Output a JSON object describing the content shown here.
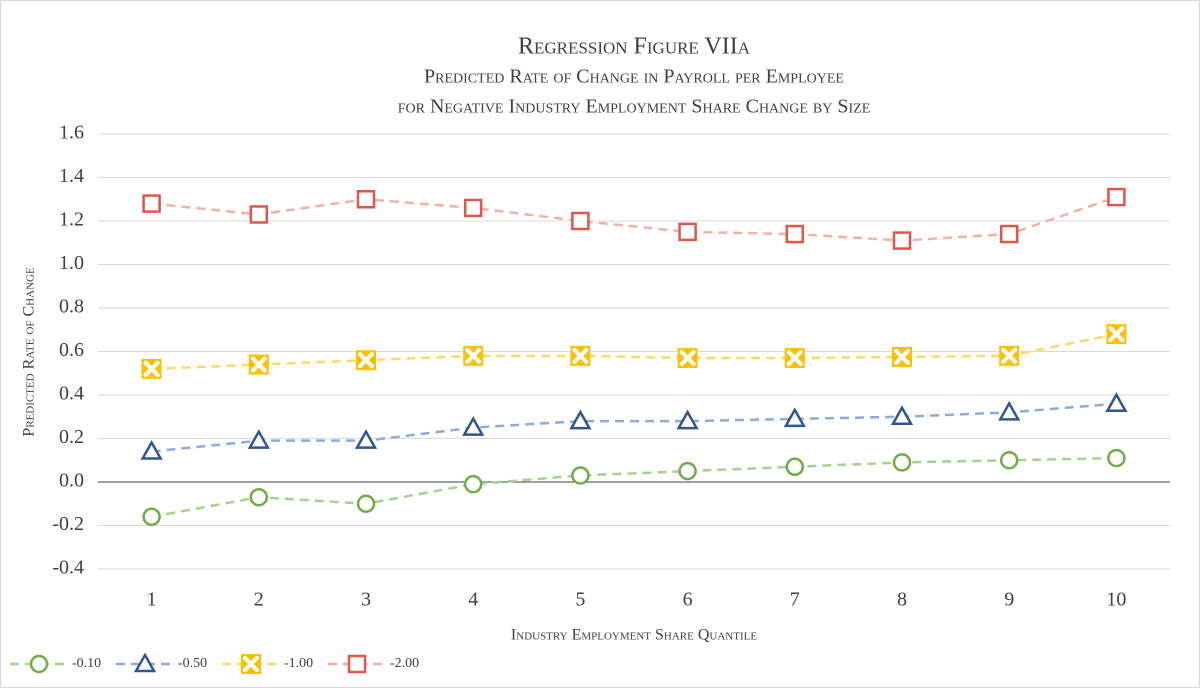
{
  "chart_data": {
    "type": "line",
    "title": "Regression Figure VIIa",
    "subtitle": [
      "Predicted Rate of Change in Payroll per Employee",
      "for Negative Industry Employment Share Change by Size"
    ],
    "x_label": "Industry Employment Share Quantile",
    "y_label": "Predicted Rate of Change",
    "x": [
      1,
      2,
      3,
      4,
      5,
      6,
      7,
      8,
      9,
      10
    ],
    "xlim": [
      0.5,
      10.5
    ],
    "ylim": [
      -0.4,
      1.6
    ],
    "yticks": [
      -0.4,
      -0.2,
      {
        "value": 0,
        "label": "0.0"
      },
      0.2,
      0.4,
      0.6,
      0.8,
      {
        "value": 1,
        "label": "1.0"
      },
      1.2,
      1.4,
      1.6
    ],
    "grid": true,
    "legend": "bottom-left",
    "series": [
      {
        "name": "-0.10",
        "marker": "circle",
        "color": "#70ad47",
        "line_color": "#a9d18e",
        "values": [
          -0.16,
          -0.07,
          -0.1,
          -0.01,
          0.03,
          0.05,
          0.07,
          0.09,
          0.1,
          0.11
        ]
      },
      {
        "name": "-0.50",
        "marker": "triangle",
        "color": "#2f5597",
        "line_color": "#8faadc",
        "values": [
          0.14,
          0.19,
          0.19,
          0.25,
          0.28,
          0.28,
          0.29,
          0.3,
          0.32,
          0.36
        ]
      },
      {
        "name": "-1.00",
        "marker": "xsquare",
        "color": "#ffc000",
        "line_color": "#ffd966",
        "values": [
          0.52,
          0.54,
          0.56,
          0.58,
          0.58,
          0.57,
          0.57,
          0.575,
          0.58,
          0.68
        ]
      },
      {
        "name": "-2.00",
        "marker": "square",
        "color": "#e0564b",
        "line_color": "#f4b1a8",
        "values": [
          1.28,
          1.23,
          1.3,
          1.26,
          1.2,
          1.15,
          1.14,
          1.11,
          1.14,
          1.31
        ]
      }
    ]
  }
}
